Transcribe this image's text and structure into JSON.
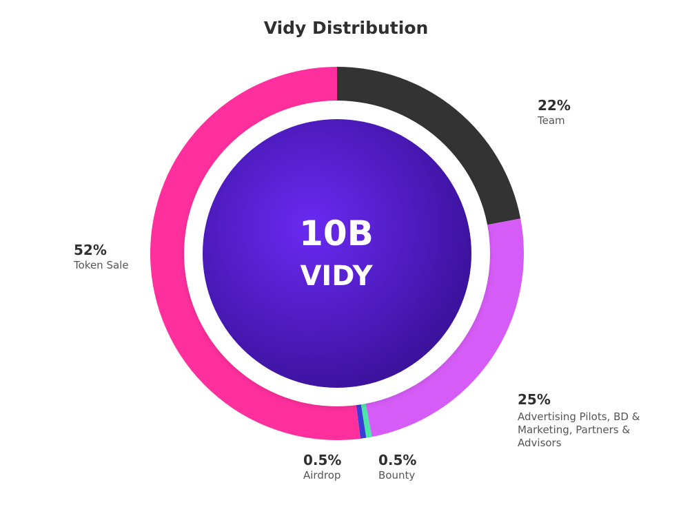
{
  "title": "Vidy Distribution",
  "center": {
    "line1": "10B",
    "line2": "VIDY"
  },
  "chart_data": {
    "type": "pie",
    "title": "Vidy Distribution",
    "slices": [
      {
        "label": "Team",
        "value": 22,
        "pct_label": "22%",
        "color": "#333333"
      },
      {
        "label": "Advertising Pilots, BD & Marketing, Partners & Advisors",
        "value": 25,
        "pct_label": "25%",
        "color": "#d65cf7"
      },
      {
        "label": "Bounty",
        "value": 0.5,
        "pct_label": "0.5%",
        "color": "#4ee6a8"
      },
      {
        "label": "Airdrop",
        "value": 0.5,
        "pct_label": "0.5%",
        "color": "#3b3bd6"
      },
      {
        "label": "Token Sale",
        "value": 52,
        "pct_label": "52%",
        "color": "#ff2f9d"
      }
    ],
    "center_colors": {
      "inner": "#6a2af2",
      "outer": "#3a119a"
    }
  },
  "labels": {
    "team": {
      "pct": "22%",
      "name": "Team"
    },
    "advertising": {
      "pct": "25%",
      "lines": [
        "Advertising Pilots, BD &",
        "Marketing, Partners &",
        "Advisors"
      ]
    },
    "bounty": {
      "pct": "0.5%",
      "name": "Bounty"
    },
    "airdrop": {
      "pct": "0.5%",
      "name": "Airdrop"
    },
    "token_sale": {
      "pct": "52%",
      "name": "Token Sale"
    }
  }
}
